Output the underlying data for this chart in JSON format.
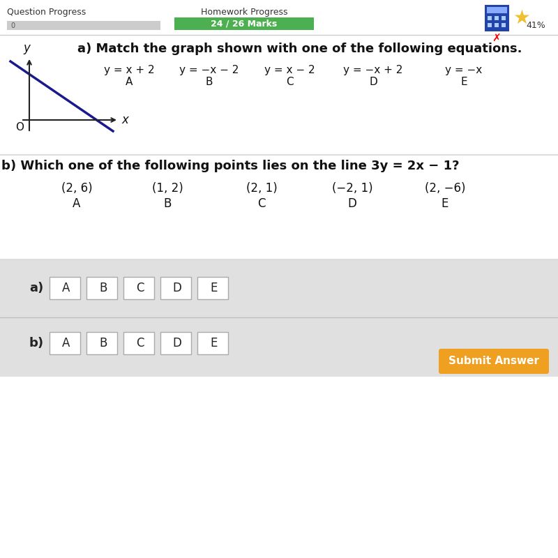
{
  "bg_color": "#f5f5f5",
  "header_bg": "#ffffff",
  "question_progress_label": "Question Progress",
  "homework_progress_label": "Homework Progress",
  "marks_label": "24 / 26 Marks",
  "marks_bar_color": "#4caf50",
  "percent_label": "41%",
  "part_a_title": "a) Match the graph shown with one of the following equations.",
  "equations": [
    "y = x + 2",
    "y = −x − 2",
    "y = x − 2",
    "y = −x + 2",
    "y = −x"
  ],
  "eq_labels": [
    "A",
    "B",
    "C",
    "D",
    "E"
  ],
  "part_b_title": "b) Which one of the following points lies on the line 3y = 2x − 1?",
  "points": [
    "(2, 6)",
    "(1, 2)",
    "(2, 1)",
    "(−2, 1)",
    "(2, −6)"
  ],
  "point_labels": [
    "A",
    "B",
    "C",
    "D",
    "E"
  ],
  "answer_section_bg": "#e0e0e0",
  "answer_a_label": "a)",
  "answer_b_label": "b)",
  "answer_buttons": [
    "A",
    "B",
    "C",
    "D",
    "E"
  ],
  "submit_bg": "#f0a020",
  "submit_text": "Submit Answer",
  "graph_line_color": "#1a1a8c",
  "axis_color": "#222222"
}
